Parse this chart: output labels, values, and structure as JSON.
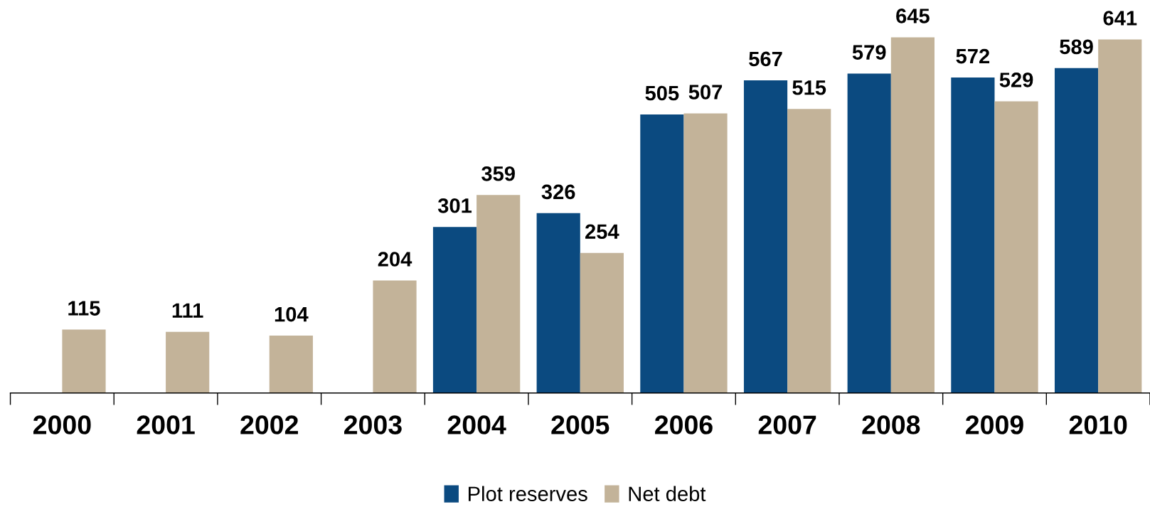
{
  "chart_data": {
    "type": "bar",
    "categories": [
      "2000",
      "2001",
      "2002",
      "2003",
      "2004",
      "2005",
      "2006",
      "2007",
      "2008",
      "2009",
      "2010"
    ],
    "series": [
      {
        "name": "Plot reserves",
        "color": "#0b4a80",
        "values": [
          null,
          null,
          null,
          null,
          301,
          326,
          505,
          567,
          579,
          572,
          589
        ]
      },
      {
        "name": "Net debt",
        "color": "#c3b399",
        "values": [
          115,
          111,
          104,
          204,
          359,
          254,
          507,
          515,
          645,
          529,
          641
        ]
      }
    ],
    "data_labels": true,
    "legend": "bottom",
    "grid": false,
    "tick_labels": "x"
  }
}
